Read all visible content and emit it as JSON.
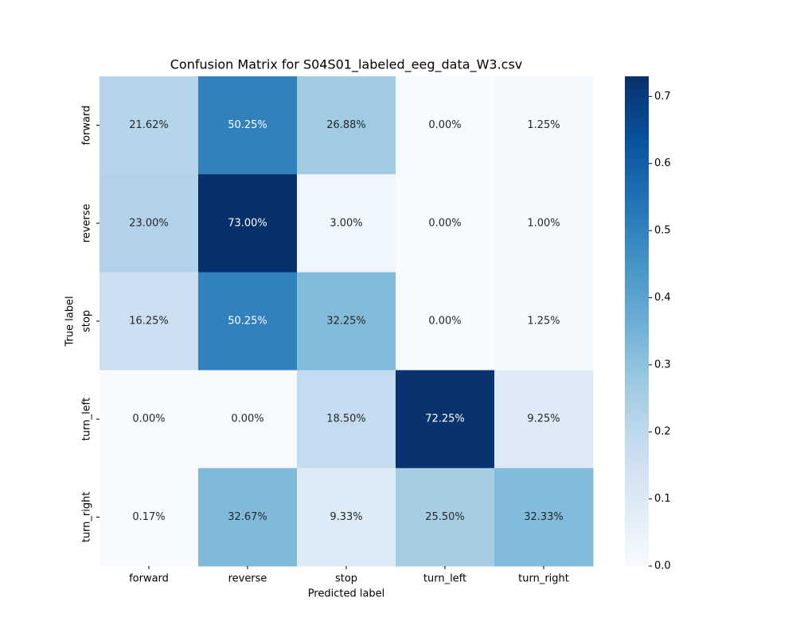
{
  "chart_data": {
    "type": "heatmap",
    "title": "Confusion Matrix for S04S01_labeled_eeg_data_W3.csv",
    "xlabel": "Predicted label",
    "ylabel": "True label",
    "x_categories": [
      "forward",
      "reverse",
      "stop",
      "turn_left",
      "turn_right"
    ],
    "y_categories": [
      "forward",
      "reverse",
      "stop",
      "turn_left",
      "turn_right"
    ],
    "values": [
      [
        0.2162,
        0.5025,
        0.2688,
        0.0,
        0.0125
      ],
      [
        0.23,
        0.73,
        0.03,
        0.0,
        0.01
      ],
      [
        0.1625,
        0.5025,
        0.3225,
        0.0,
        0.0125
      ],
      [
        0.0,
        0.0,
        0.185,
        0.7225,
        0.0925
      ],
      [
        0.0017,
        0.3267,
        0.0933,
        0.255,
        0.3233
      ]
    ],
    "value_labels": [
      [
        "21.62%",
        "50.25%",
        "26.88%",
        "0.00%",
        "1.25%"
      ],
      [
        "23.00%",
        "73.00%",
        "3.00%",
        "0.00%",
        "1.00%"
      ],
      [
        "16.25%",
        "50.25%",
        "32.25%",
        "0.00%",
        "1.25%"
      ],
      [
        "0.00%",
        "0.00%",
        "18.50%",
        "72.25%",
        "9.25%"
      ],
      [
        "0.17%",
        "32.67%",
        "9.33%",
        "25.50%",
        "32.33%"
      ]
    ],
    "colormap": "Blues",
    "clim": [
      0,
      0.73
    ],
    "cticks": [
      {
        "value": 0,
        "label": "0.0"
      },
      0.1,
      0.2,
      0.3,
      0.4,
      0.5,
      0.6,
      0.7
    ]
  }
}
